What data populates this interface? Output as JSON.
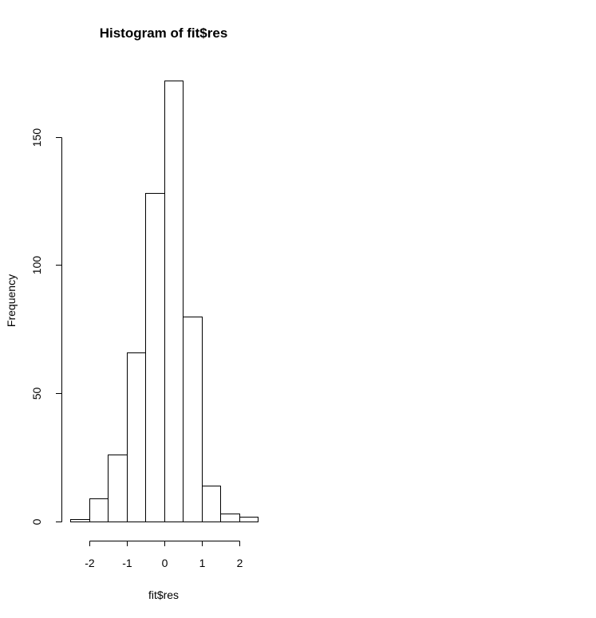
{
  "chart_data": {
    "type": "bar",
    "title": "Histogram of fit$res",
    "xlabel": "fit$res",
    "ylabel": "Frequency",
    "bins": [
      {
        "x0": -2.5,
        "x1": -2.0,
        "count": 1
      },
      {
        "x0": -2.0,
        "x1": -1.5,
        "count": 9
      },
      {
        "x0": -1.5,
        "x1": -1.0,
        "count": 26
      },
      {
        "x0": -1.0,
        "x1": -0.5,
        "count": 66
      },
      {
        "x0": -0.5,
        "x1": 0.0,
        "count": 128
      },
      {
        "x0": 0.0,
        "x1": 0.5,
        "count": 172
      },
      {
        "x0": 0.5,
        "x1": 1.0,
        "count": 80
      },
      {
        "x0": 1.0,
        "x1": 1.5,
        "count": 14
      },
      {
        "x0": 1.5,
        "x1": 2.0,
        "count": 3
      },
      {
        "x0": 2.0,
        "x1": 2.5,
        "count": 2
      }
    ],
    "x_ticks": [
      -2,
      -1,
      0,
      1,
      2
    ],
    "x_tick_labels": [
      "-2",
      "-1",
      "0",
      "1",
      "2"
    ],
    "y_ticks": [
      0,
      50,
      100,
      150
    ],
    "y_tick_labels": [
      "0",
      "50",
      "100",
      "150"
    ],
    "xlim": [
      -2.5,
      2.5
    ],
    "ylim": [
      0,
      172
    ],
    "grid": false,
    "colors": {
      "bar_fill": "#ffffff",
      "bar_stroke": "#000000"
    }
  }
}
